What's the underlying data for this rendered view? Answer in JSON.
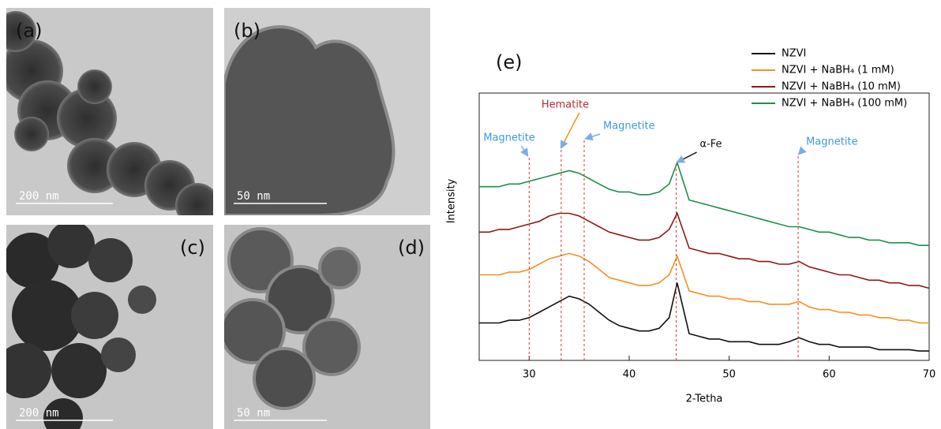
{
  "tem_panels": [
    {
      "label": "(a)",
      "scale_bar": "200 nm"
    },
    {
      "label": "(b)",
      "scale_bar": "50 nm"
    },
    {
      "label": "(c)",
      "scale_bar": "200 nm"
    },
    {
      "label": "(d)",
      "scale_bar": "50 nm"
    }
  ],
  "chart_data": {
    "type": "line",
    "panel_label": "(e)",
    "xlabel": "2-Tetha",
    "ylabel": "Intensity",
    "xlim": [
      25,
      70
    ],
    "xticks": [
      30,
      40,
      50,
      60,
      70
    ],
    "ylim": [
      0,
      100
    ],
    "x": [
      25,
      26,
      27,
      28,
      29,
      30,
      31,
      32,
      33,
      34,
      35,
      36,
      37,
      38,
      39,
      40,
      41,
      42,
      43,
      44,
      44.8,
      46,
      47,
      48,
      49,
      50,
      51,
      52,
      53,
      54,
      55,
      56,
      57,
      58,
      59,
      60,
      61,
      62,
      63,
      64,
      65,
      66,
      67,
      68,
      69,
      70
    ],
    "series": [
      {
        "name": "NZVI",
        "color": "#111111",
        "values": [
          14,
          14,
          14,
          15,
          15,
          16,
          18,
          20,
          22,
          24,
          23,
          21,
          18,
          15,
          13,
          12,
          11,
          11,
          12,
          16,
          29,
          10,
          9,
          8,
          8,
          7,
          7,
          7,
          6,
          6,
          6,
          7,
          8.5,
          7,
          6,
          6,
          5,
          5,
          5,
          5,
          4,
          4,
          4,
          4,
          3.5,
          3.5
        ]
      },
      {
        "name": "NZVI + NaBH₄ (1 mM)",
        "color": "#f5901e",
        "values": [
          32,
          32,
          32,
          33,
          33,
          34,
          36,
          38,
          39,
          40,
          39,
          37,
          34,
          31,
          30,
          29,
          28,
          28,
          29,
          32,
          39,
          26,
          25,
          24,
          24,
          23,
          23,
          22,
          22,
          21,
          21,
          21,
          22,
          20,
          19,
          19,
          18,
          18,
          17,
          17,
          16,
          16,
          15,
          15,
          14,
          14
        ]
      },
      {
        "name": "NZVI + NaBH₄ (10 mM)",
        "color": "#8b1a1a",
        "values": [
          48,
          48,
          49,
          49,
          50,
          51,
          52,
          54,
          55,
          55,
          54,
          52,
          50,
          48,
          47,
          46,
          45,
          45,
          46,
          49,
          55,
          42,
          41,
          40,
          40,
          39,
          38,
          38,
          37,
          37,
          36,
          36,
          37,
          35,
          34,
          33,
          32,
          32,
          31,
          30,
          30,
          29,
          29,
          28,
          28,
          27
        ]
      },
      {
        "name": "NZVI + NaBH₄ (100 mM)",
        "color": "#1f8f4a",
        "values": [
          65,
          65,
          65,
          66,
          66,
          67,
          68,
          69,
          70,
          71,
          70,
          68,
          66,
          64,
          63,
          63,
          62,
          62,
          63,
          66,
          74,
          60,
          59,
          58,
          57,
          56,
          55,
          54,
          53,
          52,
          51,
          50,
          50,
          49,
          48,
          48,
          47,
          46,
          46,
          45,
          45,
          44,
          44,
          44,
          43,
          43
        ]
      }
    ],
    "annotations": [
      {
        "text": "Magnetite",
        "x": 30,
        "color": "#3a9bd5"
      },
      {
        "text": "Hematite",
        "x": 33.2,
        "color": "#b03030"
      },
      {
        "text": "Magnetite",
        "x": 35.5,
        "color": "#3a9bd5"
      },
      {
        "text": "α-Fe",
        "x": 44.7,
        "color": "#111111"
      },
      {
        "text": "Magnetite",
        "x": 56.9,
        "color": "#3a9bd5"
      }
    ]
  }
}
